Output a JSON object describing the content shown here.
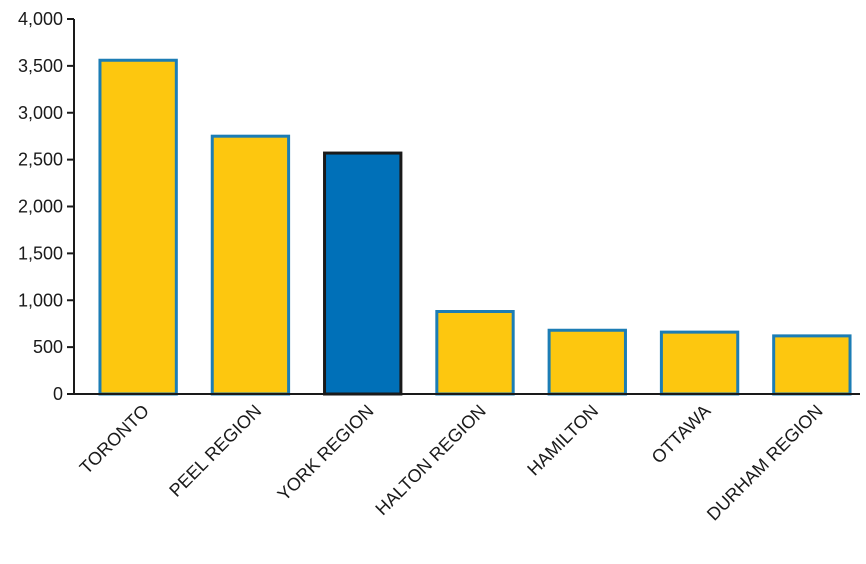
{
  "chart_data": {
    "type": "bar",
    "title": "",
    "xlabel": "",
    "ylabel": "",
    "categories": [
      "TORONTO",
      "PEEL REGION",
      "YORK REGION",
      "HALTON REGION",
      "HAMILTON",
      "OTTAWA",
      "DURHAM REGION"
    ],
    "values": [
      3560,
      2750,
      2570,
      880,
      680,
      660,
      620
    ],
    "highlight_index": 2,
    "ylim": [
      0,
      4000
    ],
    "yticks": [
      0,
      500,
      1000,
      1500,
      2000,
      2500,
      3000,
      3500,
      4000
    ],
    "ytick_labels": [
      "0",
      "500",
      "1,000",
      "1,500",
      "2,000",
      "2,500",
      "3,000",
      "3,500",
      "4,000"
    ],
    "grid": false,
    "legend": "none",
    "colors": {
      "bar_fill": "#FDC70F",
      "bar_stroke": "#1C7DB5",
      "highlight_fill": "#0070B8",
      "highlight_stroke": "#1a1a1a",
      "axis": "#1a1a1a"
    }
  }
}
